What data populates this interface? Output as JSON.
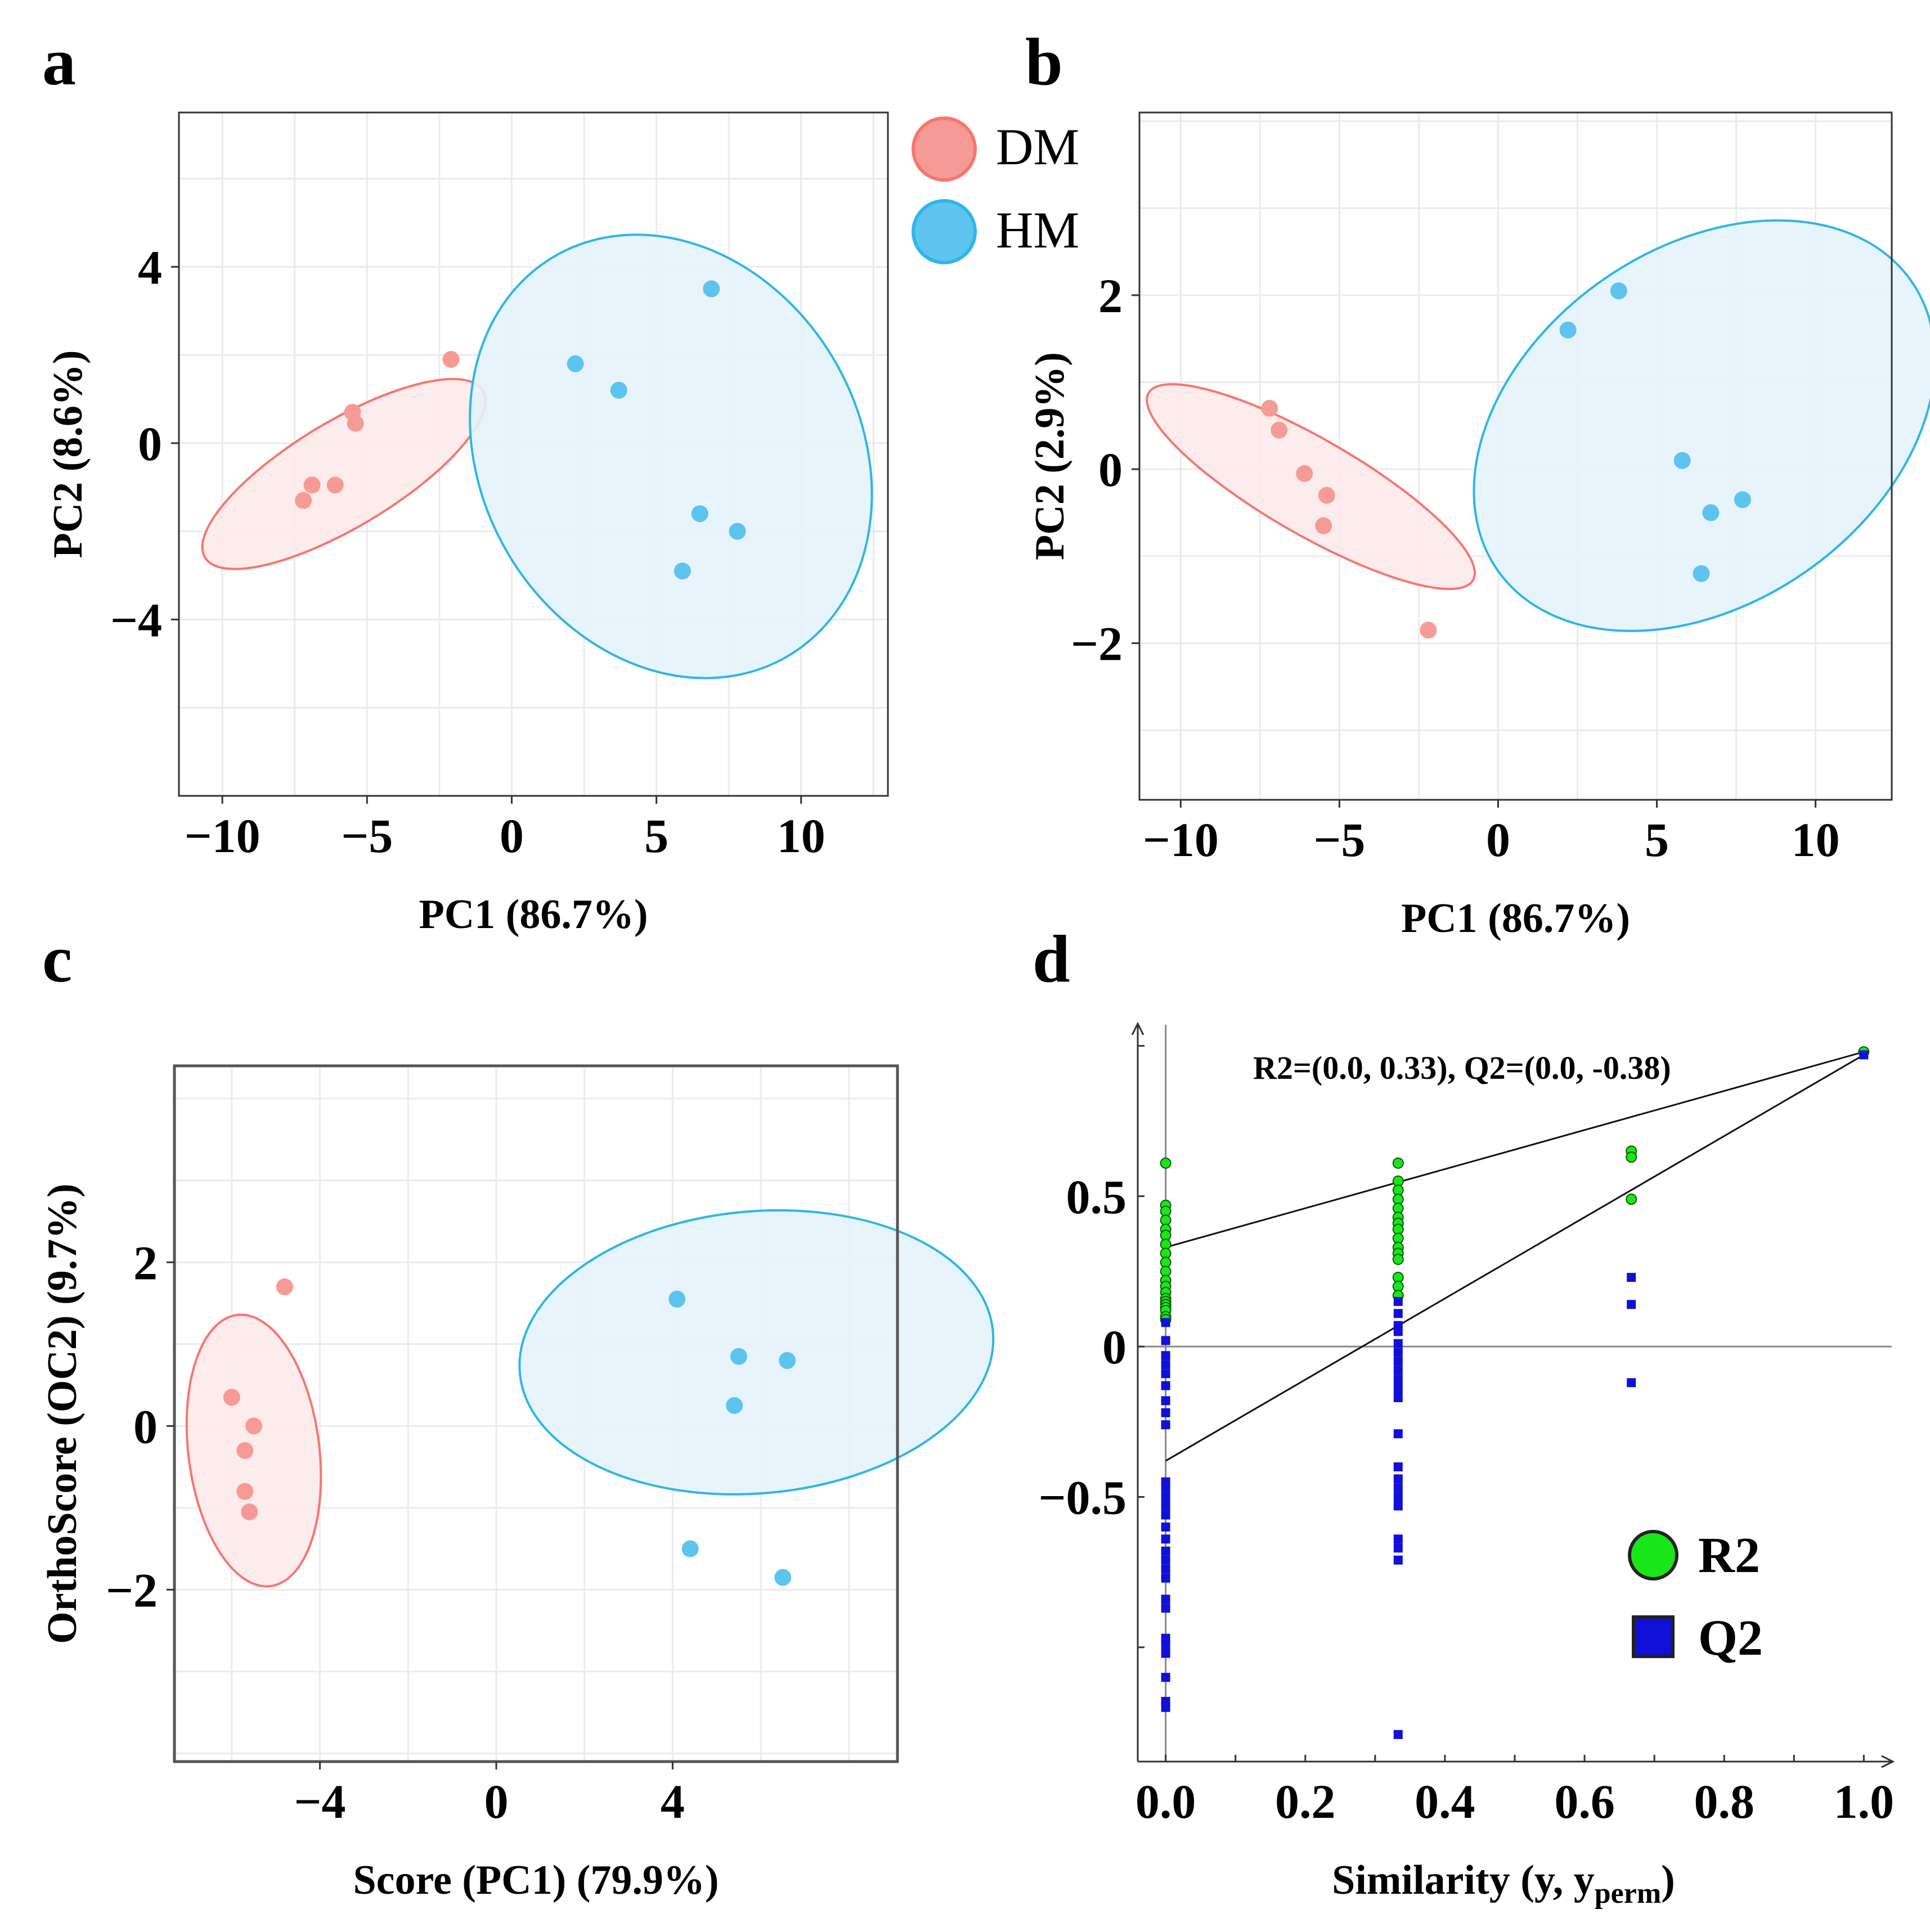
{
  "colors": {
    "dm_fill": "#F8766D",
    "dm_point": "#F69A96",
    "dm_ellipse_fill": "#FDEAEA",
    "hm_stroke": "#2EB6E8",
    "hm_point": "#5DC3EF",
    "hm_ellipse_fill": "#E4F3FB",
    "r2_fill": "#19E619",
    "q2_fill": "#1010D8",
    "grid": "#EBEBEB"
  },
  "legend_ab": {
    "dm_label": "DM",
    "hm_label": "HM"
  },
  "legend_d": {
    "r2_label": "R2",
    "q2_label": "Q2"
  },
  "chart_data": [
    {
      "panel": "a",
      "type": "scatter",
      "xlabel": "PC1 (86.7%)",
      "ylabel": "PC2 (8.6%)",
      "xlim": [
        -11.5,
        13
      ],
      "ylim": [
        -8,
        7.5
      ],
      "xticks": [
        -10,
        -5,
        0,
        5,
        10
      ],
      "yticks": [
        -4,
        0,
        4
      ],
      "xtick_labels": [
        "−10",
        "−5",
        "0",
        "5",
        "10"
      ],
      "ytick_labels": [
        "−4",
        "0",
        "4"
      ],
      "series": [
        {
          "name": "DM",
          "x": [
            -7.2,
            -6.9,
            -6.1,
            -5.5,
            -5.4,
            -2.1
          ],
          "y": [
            -1.3,
            -0.95,
            -0.95,
            0.7,
            0.45,
            1.9
          ],
          "ellipse": {
            "cx": -5.8,
            "cy": -0.7,
            "rx": 5.6,
            "ry": 1.2,
            "angle_deg": 31
          }
        },
        {
          "name": "HM",
          "x": [
            2.2,
            3.7,
            6.9,
            6.5,
            7.8,
            5.9
          ],
          "y": [
            1.8,
            1.2,
            3.5,
            -1.6,
            -2.0,
            -2.9
          ],
          "ellipse": {
            "cx": 5.5,
            "cy": -0.3,
            "rx": 8.0,
            "ry": 4.3,
            "angle_deg": -60
          }
        }
      ]
    },
    {
      "panel": "b",
      "type": "scatter",
      "xlabel": "PC1 (86.7%)",
      "ylabel": "PC2 (2.9%)",
      "xlim": [
        -11.3,
        12.4
      ],
      "ylim": [
        -3.8,
        4.1
      ],
      "xticks": [
        -10,
        -5,
        0,
        5,
        10
      ],
      "yticks": [
        -2,
        0,
        2
      ],
      "xtick_labels": [
        "−10",
        "−5",
        "0",
        "5",
        "10"
      ],
      "ytick_labels": [
        "−2",
        "0",
        "2"
      ],
      "series": [
        {
          "name": "DM",
          "x": [
            -7.2,
            -6.9,
            -6.1,
            -5.4,
            -5.5,
            -2.2
          ],
          "y": [
            0.7,
            0.45,
            -0.05,
            -0.3,
            -0.65,
            -1.85
          ],
          "ellipse": {
            "cx": -5.9,
            "cy": -0.2,
            "rx": 5.9,
            "ry": 0.55,
            "angle_deg": -30
          }
        },
        {
          "name": "HM",
          "x": [
            2.2,
            3.8,
            5.8,
            6.7,
            7.7,
            6.4
          ],
          "y": [
            1.6,
            2.05,
            0.1,
            -0.5,
            -0.35,
            -1.2
          ],
          "ellipse": {
            "cx": 6.5,
            "cy": 0.5,
            "rx": 5.6,
            "ry": 2.9,
            "angle_deg": -55
          }
        }
      ]
    },
    {
      "panel": "c",
      "type": "scatter",
      "xlabel": "Score (PC1) (79.9%)",
      "ylabel": "OrthoScore (OC2) (9.7%)",
      "xlim": [
        -7.3,
        9.1
      ],
      "ylim": [
        -4.1,
        4.4
      ],
      "xticks": [
        -4,
        0,
        4
      ],
      "yticks": [
        -2,
        0,
        2
      ],
      "xtick_labels": [
        "−4",
        "0",
        "4"
      ],
      "ytick_labels": [
        "−2",
        "0",
        "2"
      ],
      "series": [
        {
          "name": "DM",
          "x": [
            -6.0,
            -5.7,
            -5.5,
            -5.7,
            -5.6,
            -4.8
          ],
          "y": [
            0.35,
            -0.3,
            0.0,
            -0.8,
            -1.05,
            1.7
          ],
          "ellipse": {
            "cx": -5.5,
            "cy": -0.3,
            "rx": 3.1,
            "ry": 0.8,
            "angle_deg": -83
          }
        },
        {
          "name": "HM",
          "x": [
            4.1,
            5.5,
            6.6,
            5.4,
            4.4,
            6.5
          ],
          "y": [
            1.55,
            0.85,
            0.8,
            0.25,
            -1.5,
            -1.85
          ],
          "ellipse": {
            "cx": 5.9,
            "cy": 0.9,
            "rx": 3.2,
            "ry": 2.9,
            "angle_deg": -85
          }
        }
      ]
    },
    {
      "panel": "d",
      "type": "scatter",
      "title": "R2=(0.0, 0.33), Q2=(0.0, -0.38)",
      "xlabel": "Similarity (y, y",
      "xlabel_sub": "perm",
      "xlabel_end": ")",
      "xlim": [
        -0.04,
        1.04
      ],
      "ylim": [
        -1.38,
        1.07
      ],
      "xticks": [
        0.0,
        0.2,
        0.4,
        0.6,
        0.8,
        1.0
      ],
      "yticks": [
        -0.5,
        0,
        0.5
      ],
      "xtick_labels": [
        "0.0",
        "0.2",
        "0.4",
        "0.6",
        "0.8",
        "1.0"
      ],
      "ytick_labels": [
        "−0.5",
        "0",
        "0.5"
      ],
      "series": [
        {
          "name": "R2",
          "x": [
            0,
            0,
            0,
            0,
            0,
            0,
            0,
            0,
            0,
            0,
            0,
            0,
            0,
            0,
            0,
            0,
            0,
            0,
            0,
            0,
            0.333,
            0.333,
            0.333,
            0.333,
            0.333,
            0.333,
            0.333,
            0.333,
            0.333,
            0.333,
            0.333,
            0.333,
            0.333,
            0.333,
            0.333,
            0.667,
            0.667,
            0.667,
            1.0
          ],
          "y": [
            0.61,
            0.47,
            0.45,
            0.42,
            0.39,
            0.37,
            0.34,
            0.31,
            0.28,
            0.25,
            0.22,
            0.2,
            0.18,
            0.16,
            0.15,
            0.14,
            0.13,
            0.12,
            0.1,
            0.09,
            0.61,
            0.55,
            0.52,
            0.49,
            0.46,
            0.43,
            0.41,
            0.39,
            0.36,
            0.33,
            0.31,
            0.29,
            0.23,
            0.2,
            0.17,
            0.65,
            0.63,
            0.49,
            0.98
          ]
        },
        {
          "name": "Q2",
          "x": [
            0,
            0,
            0,
            0,
            0,
            0,
            0,
            0,
            0,
            0,
            0,
            0,
            0,
            0,
            0,
            0,
            0,
            0,
            0,
            0,
            0,
            0,
            0,
            0,
            0,
            0,
            0,
            0,
            0.333,
            0.333,
            0.333,
            0.333,
            0.333,
            0.333,
            0.333,
            0.333,
            0.333,
            0.333,
            0.333,
            0.333,
            0.333,
            0.333,
            0.333,
            0.333,
            0.333,
            0.333,
            0.333,
            0.333,
            0.333,
            0.667,
            0.667,
            0.667,
            1.0
          ],
          "y": [
            0.08,
            0.02,
            -0.03,
            -0.06,
            -0.09,
            -0.13,
            -0.18,
            -0.22,
            -0.26,
            -0.47,
            -0.5,
            -0.53,
            -0.56,
            -0.6,
            -0.64,
            -0.68,
            -0.71,
            -0.74,
            -0.77,
            -0.84,
            -0.87,
            -0.97,
            -0.99,
            -1.02,
            -1.1,
            -1.18,
            -1.2,
            -0.45,
            0.15,
            0.11,
            0.07,
            0.05,
            0.01,
            -0.02,
            -0.05,
            -0.08,
            -0.11,
            -0.14,
            -0.17,
            -0.29,
            -0.4,
            -0.44,
            -0.47,
            -0.5,
            -0.53,
            -0.64,
            -0.67,
            -0.71,
            -1.29,
            0.23,
            0.14,
            -0.12,
            0.97
          ]
        }
      ],
      "regression_lines": [
        {
          "name": "R2",
          "intercept": 0.33,
          "end": [
            1.0,
            0.98
          ]
        },
        {
          "name": "Q2",
          "intercept": -0.38,
          "end": [
            1.0,
            0.97
          ]
        }
      ]
    }
  ]
}
